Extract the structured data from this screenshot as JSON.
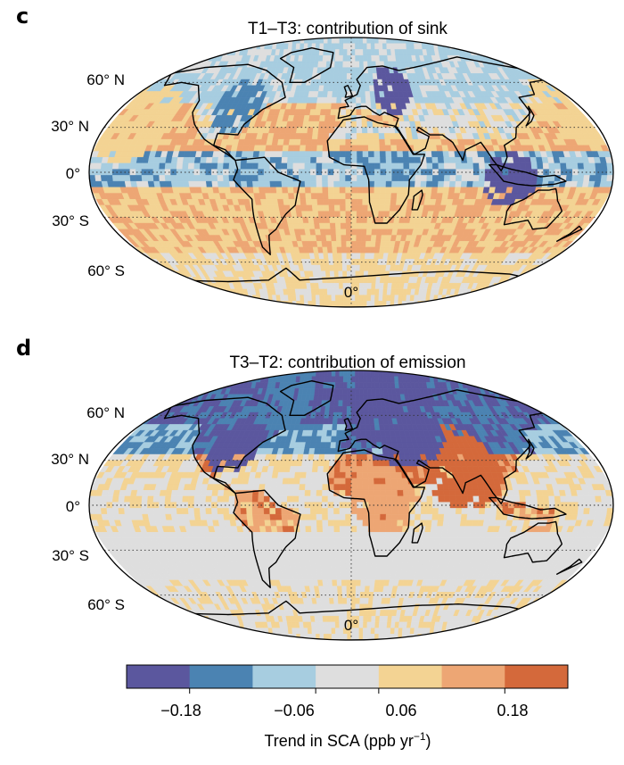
{
  "panels": [
    {
      "letter": "c",
      "title": "T1–T3: contribution of sink",
      "lat_labels": [
        "60° N",
        "30° N",
        "0°",
        "30° S",
        "60° S"
      ],
      "lon_label": "0°",
      "field": {
        "ocean_base": 1,
        "land_base": 2,
        "tropics_mode": "sink",
        "hotspots": [
          {
            "lon": -160,
            "lat": 32,
            "r": 26,
            "cls": 4,
            "note": "NE Pacific"
          },
          {
            "lon": 170,
            "lat": 40,
            "r": 22,
            "cls": 4,
            "note": "NW Pacific"
          },
          {
            "lon": 35,
            "lat": 55,
            "r": 16,
            "cls": 0,
            "note": "E Europe"
          },
          {
            "lon": -90,
            "lat": 45,
            "r": 18,
            "cls": 1,
            "note": "N America"
          },
          {
            "lon": 110,
            "lat": -5,
            "r": 18,
            "cls": 0,
            "note": "Indonesia"
          }
        ]
      }
    },
    {
      "letter": "d",
      "title": "T3–T2: contribution of emission",
      "lat_labels": [
        "60° N",
        "30° N",
        "0°",
        "30° S",
        "60° S"
      ],
      "lon_label": "0°",
      "field": {
        "ocean_base": 3,
        "land_base": 3,
        "tropics_mode": "emission",
        "hotspots": [
          {
            "lon": 80,
            "lat": 25,
            "r": 28,
            "cls": 6,
            "note": "S Asia"
          },
          {
            "lon": 20,
            "lat": 5,
            "r": 22,
            "cls": 5,
            "note": "Africa"
          },
          {
            "lon": 40,
            "lat": 65,
            "r": 40,
            "cls": 0,
            "note": "Eurasia north"
          },
          {
            "lon": -90,
            "lat": 40,
            "r": 20,
            "cls": 0,
            "note": "N America"
          },
          {
            "lon": -60,
            "lat": 75,
            "r": 25,
            "cls": 1,
            "note": "Arctic"
          }
        ]
      }
    }
  ],
  "colorbar": {
    "colors": [
      "#5b579e",
      "#4b83b2",
      "#a7cde0",
      "#dedede",
      "#f3d393",
      "#eda674",
      "#d4693b"
    ],
    "tick_labels": [
      "−0.18",
      "−0.06",
      "0.06",
      "0.18"
    ],
    "tick_values": [
      -0.18,
      -0.06,
      0.06,
      0.18
    ],
    "label_main": "Trend in SCA (ppb yr",
    "label_sup": "−1",
    "label_end": ")"
  },
  "chart_data": [
    {
      "type": "heatmap",
      "title": "T1–T3: contribution of sink",
      "projection": "Robinson",
      "y_tick_labels": [
        "60° N",
        "30° N",
        "0°",
        "30° S",
        "60° S"
      ],
      "x_tick_labels": [
        "0°"
      ],
      "colorbar_bins": [
        -0.3,
        -0.18,
        -0.12,
        -0.06,
        0.06,
        0.12,
        0.18,
        0.3
      ]
    },
    {
      "type": "heatmap",
      "title": "T3–T2: contribution of emission",
      "projection": "Robinson",
      "y_tick_labels": [
        "60° N",
        "30° N",
        "0°",
        "30° S",
        "60° S"
      ],
      "x_tick_labels": [
        "0°"
      ],
      "colorbar_bins": [
        -0.3,
        -0.18,
        -0.12,
        -0.06,
        0.06,
        0.12,
        0.18,
        0.3
      ]
    }
  ]
}
